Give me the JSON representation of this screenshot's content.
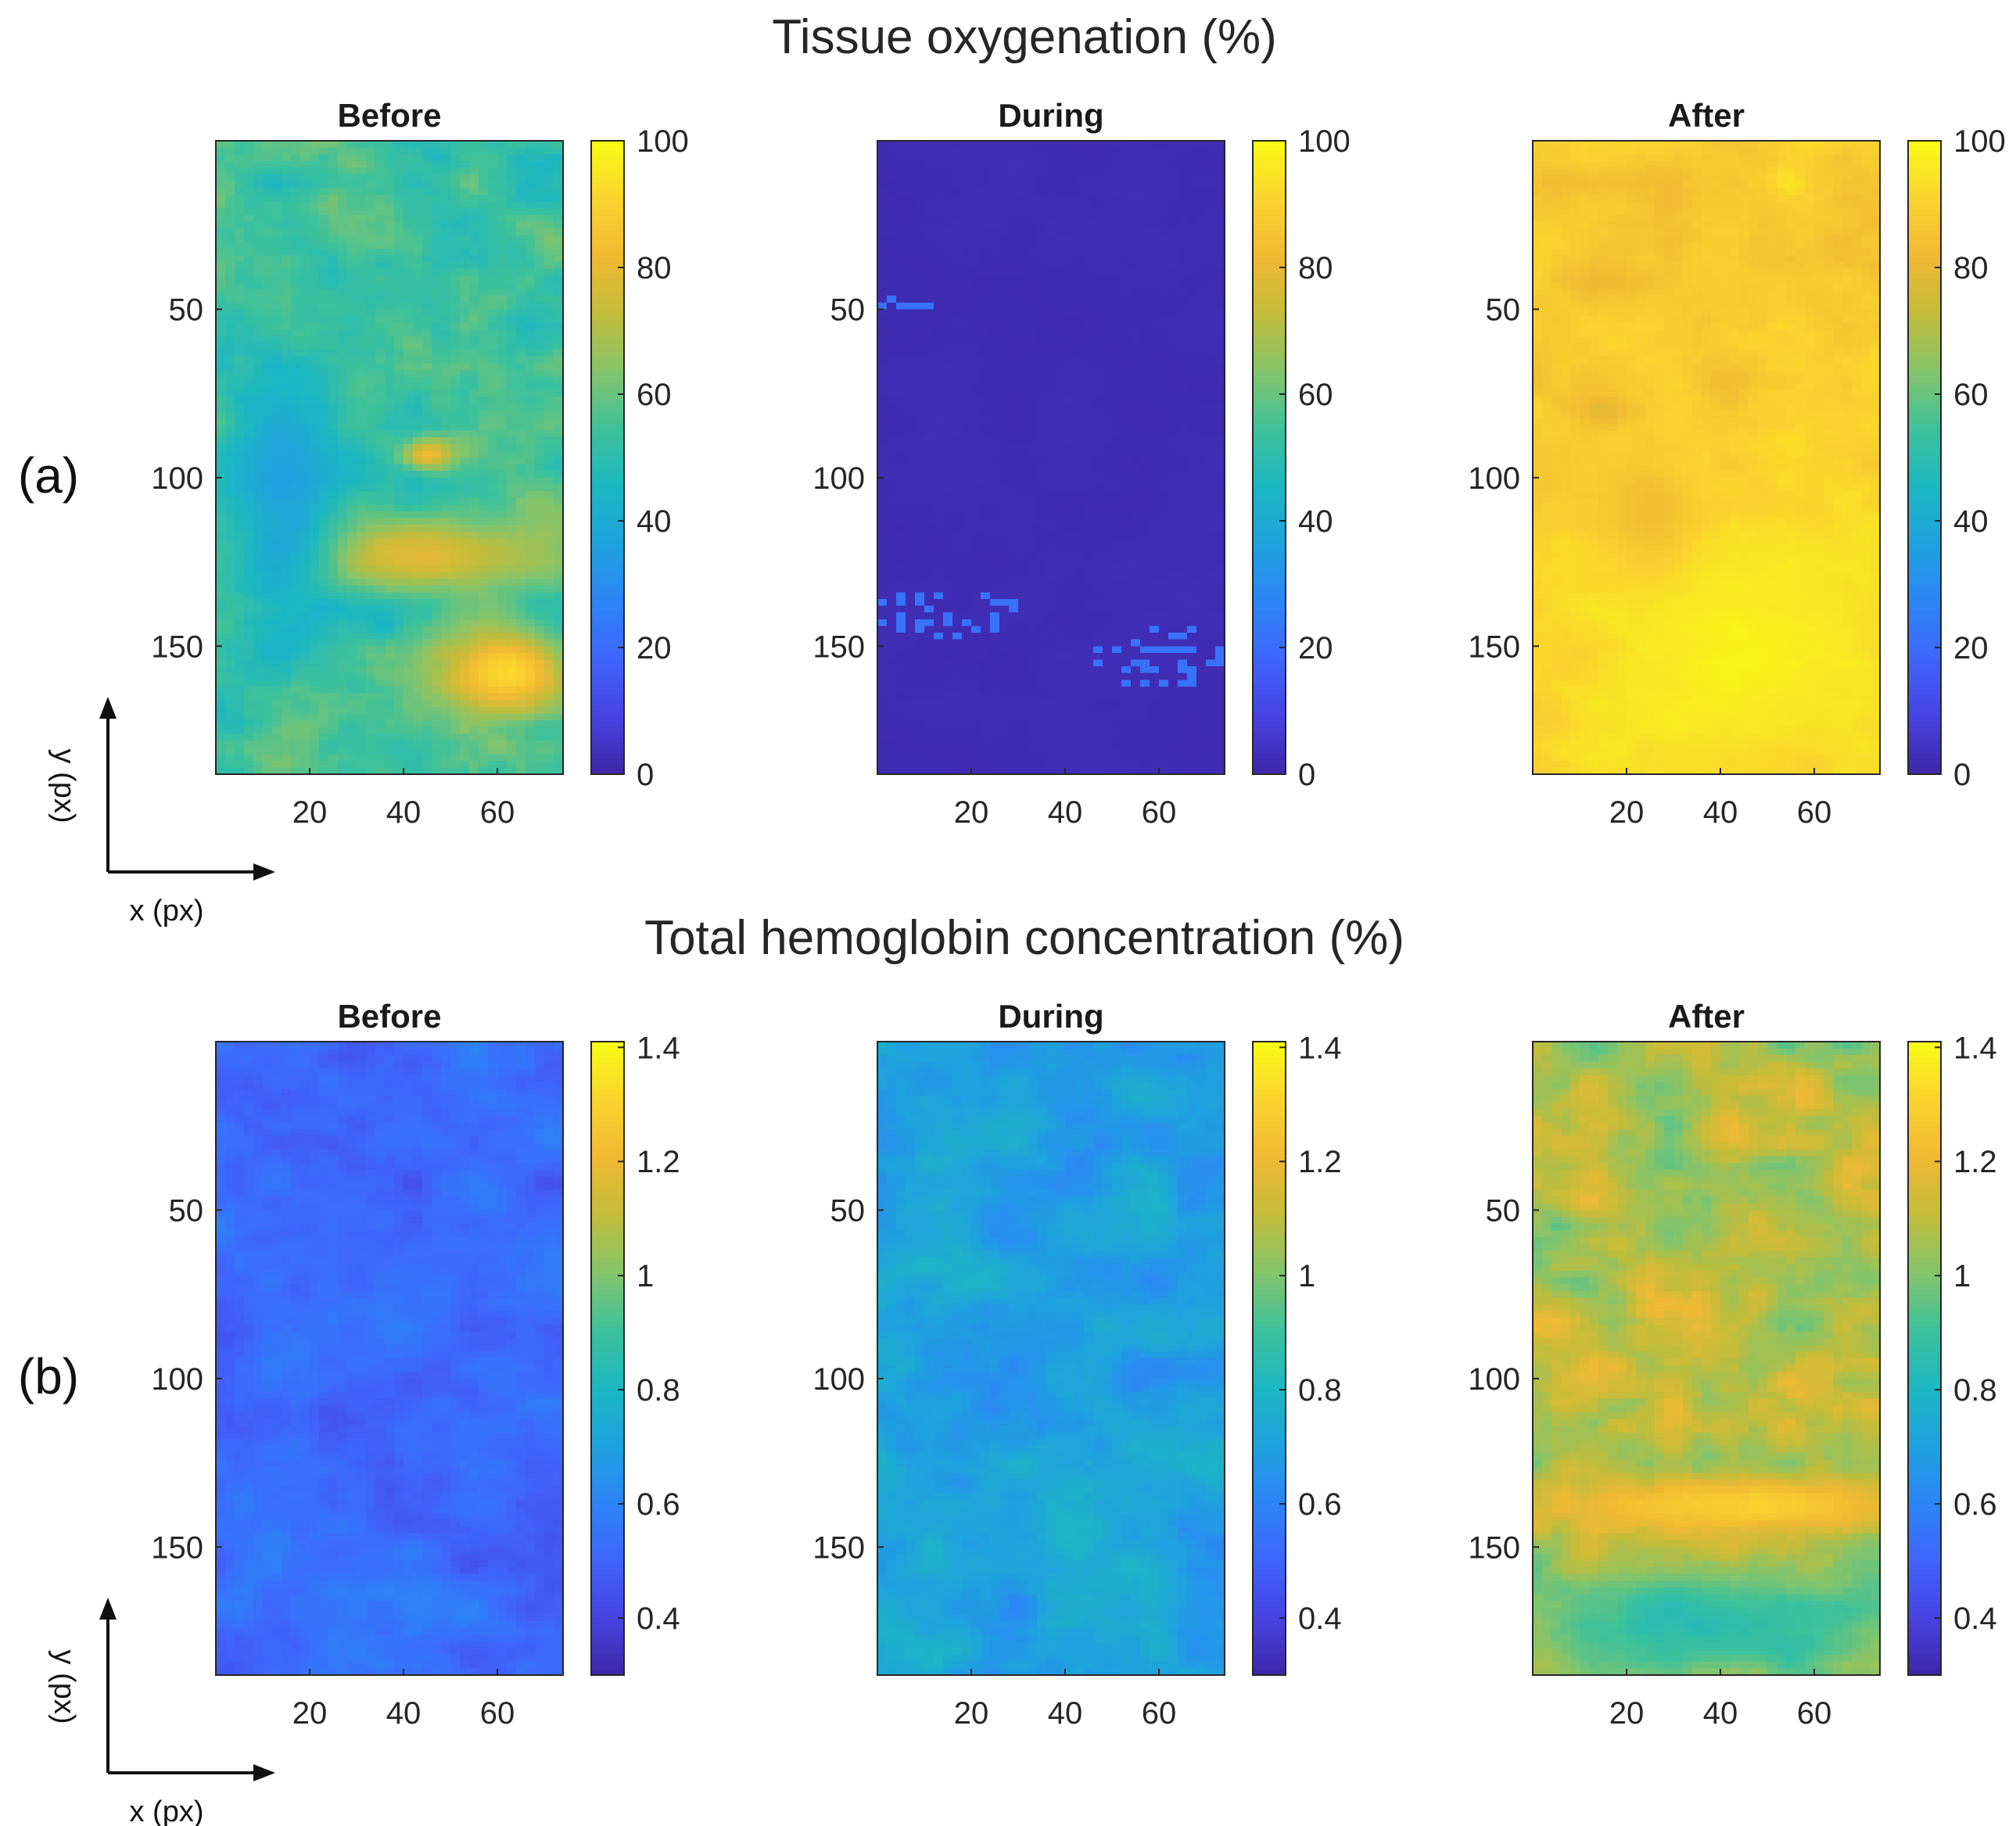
{
  "chart_data": [
    {
      "type": "heatmap",
      "row_label": "(a)",
      "title": "Tissue oxygenation  (%)",
      "xlabel": "x (px)",
      "ylabel": "y (px)",
      "xlim": [
        0,
        74
      ],
      "ylim": [
        0,
        188
      ],
      "xticks": [
        "20",
        "40",
        "60"
      ],
      "xtick_values": [
        20,
        40,
        60
      ],
      "yticks": [
        "50",
        "100",
        "150"
      ],
      "ytick_values": [
        50,
        100,
        150
      ],
      "colorbar": {
        "min": 0,
        "max": 100,
        "ticks": [
          "0",
          "20",
          "40",
          "60",
          "80",
          "100"
        ],
        "tick_values": [
          0,
          20,
          40,
          60,
          80,
          100
        ]
      },
      "panels": [
        {
          "name": "Before",
          "typical_value": 52,
          "spread": 14,
          "pattern": "before-oxygenation",
          "features": [
            {
              "desc": "orange band",
              "x": 45,
              "y": 123,
              "rx": 30,
              "ry": 12,
              "value": 78
            },
            {
              "desc": "bright patch",
              "x": 62,
              "y": 158,
              "rx": 14,
              "ry": 13,
              "value": 92
            },
            {
              "desc": "orange spot",
              "x": 45,
              "y": 93,
              "rx": 6,
              "ry": 5,
              "value": 82
            },
            {
              "desc": "blue area",
              "x": 15,
              "y": 105,
              "rx": 12,
              "ry": 40,
              "value": 37
            }
          ]
        },
        {
          "name": "During",
          "typical_value": 2,
          "spread": 1,
          "pattern": "during-oxygenation",
          "features": [
            {
              "desc": "scattered points",
              "x": 15,
              "y": 140,
              "rx": 15,
              "ry": 6,
              "value": 22
            },
            {
              "desc": "scattered points",
              "x": 60,
              "y": 153,
              "rx": 12,
              "ry": 8,
              "value": 22
            },
            {
              "desc": "scattered points",
              "x": 6,
              "y": 50,
              "rx": 5,
              "ry": 3,
              "value": 22
            }
          ]
        },
        {
          "name": "After",
          "typical_value": 88,
          "spread": 8,
          "pattern": "after-oxygenation",
          "features": [
            {
              "desc": "yellow lower region",
              "x": 45,
              "y": 150,
              "rx": 40,
              "ry": 45,
              "value": 98
            },
            {
              "desc": "darker orange spot",
              "x": 15,
              "y": 80,
              "rx": 6,
              "ry": 5,
              "value": 78
            },
            {
              "desc": "orange diagonal",
              "x": 25,
              "y": 110,
              "rx": 10,
              "ry": 20,
              "value": 83
            }
          ]
        }
      ]
    },
    {
      "type": "heatmap",
      "row_label": "(b)",
      "title": "Total hemoglobin concentration  (%)",
      "xlabel": "x (px)",
      "ylabel": "y (px)",
      "xlim": [
        0,
        74
      ],
      "ylim": [
        0,
        188
      ],
      "xticks": [
        "20",
        "40",
        "60"
      ],
      "xtick_values": [
        20,
        40,
        60
      ],
      "yticks": [
        "50",
        "100",
        "150"
      ],
      "ytick_values": [
        50,
        100,
        150
      ],
      "colorbar": {
        "min": 0.3,
        "max": 1.41,
        "ticks": [
          "0.4",
          "0.6",
          "0.8",
          "1",
          "1.2",
          "1.4"
        ],
        "tick_values": [
          0.4,
          0.6,
          0.8,
          1.0,
          1.2,
          1.4
        ]
      },
      "panels": [
        {
          "name": "Before",
          "typical_value": 0.52,
          "spread": 0.1,
          "pattern": "before-hemoglobin",
          "features": []
        },
        {
          "name": "During",
          "typical_value": 0.7,
          "spread": 0.12,
          "pattern": "during-hemoglobin",
          "features": []
        },
        {
          "name": "After",
          "typical_value": 1.08,
          "spread": 0.2,
          "pattern": "after-hemoglobin",
          "features": [
            {
              "desc": "bright band",
              "x": 45,
              "y": 138,
              "rx": 40,
              "ry": 8,
              "value": 1.3
            },
            {
              "desc": "teal lower region",
              "x": 37,
              "y": 172,
              "rx": 40,
              "ry": 16,
              "value": 0.85
            }
          ]
        }
      ]
    }
  ],
  "colormap": [
    "#3e26a8",
    "#4743e0",
    "#3f65fc",
    "#2c85f6",
    "#1ea2de",
    "#1cb7c1",
    "#3ec19a",
    "#85c46a",
    "#c3bc3a",
    "#f1b933",
    "#fad42e",
    "#f9fb15"
  ],
  "axis_color": "#262626",
  "arrow_color": "#111111"
}
